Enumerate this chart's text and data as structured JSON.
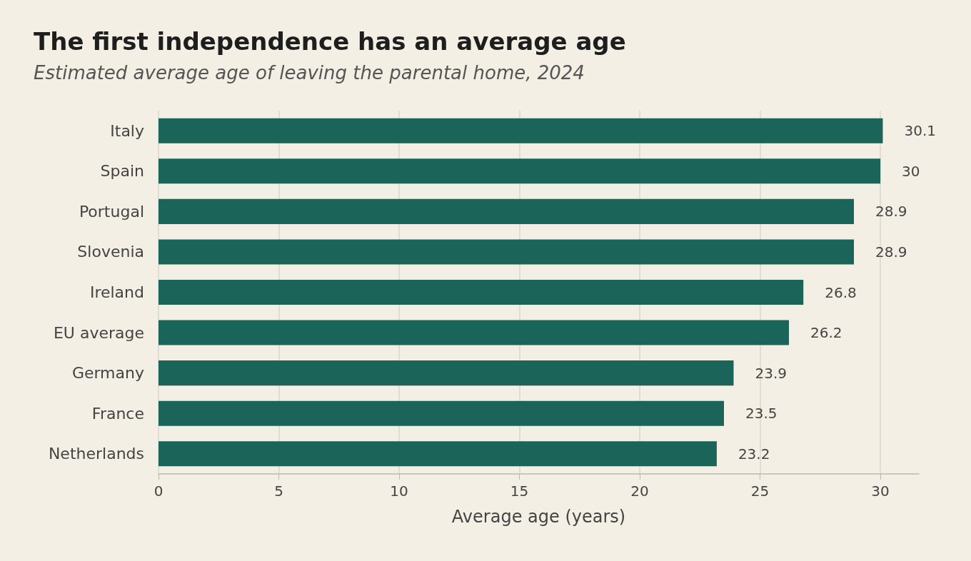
{
  "chart_data": {
    "type": "bar",
    "orientation": "horizontal",
    "title": "The first independence has an average age",
    "subtitle": "Estimated average age of leaving the parental home, 2024",
    "xlabel": "Average age (years)",
    "categories": [
      "Italy",
      "Spain",
      "Portugal",
      "Slovenia",
      "Ireland",
      "EU average",
      "Germany",
      "France",
      "Netherlands"
    ],
    "values": [
      30.1,
      30,
      28.9,
      28.9,
      26.8,
      26.2,
      23.9,
      23.5,
      23.2
    ],
    "color": "#1b6459",
    "xlim": [
      0,
      31.6
    ],
    "xticks": [
      0,
      5,
      10,
      15,
      20,
      25,
      30
    ],
    "grid": "x",
    "data_labels": true
  }
}
